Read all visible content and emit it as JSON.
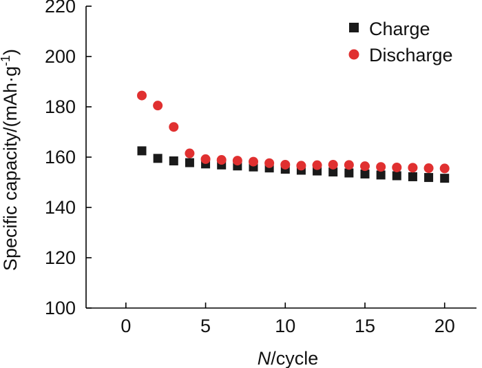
{
  "chart_data": {
    "type": "scatter",
    "title": "",
    "xlabel": {
      "italic": "N",
      "rest": "/cycle"
    },
    "ylabel": {
      "main": "Specific capacity/(mAh·g",
      "sup": "-1",
      "end": ")"
    },
    "xlim": [
      -2.5,
      22
    ],
    "ylim": [
      100,
      220
    ],
    "xticks": [
      0,
      5,
      10,
      15,
      20
    ],
    "yticks": [
      100,
      120,
      140,
      160,
      180,
      200,
      220
    ],
    "legend_position": "top-right",
    "series": [
      {
        "name": "Charge",
        "marker": "square",
        "color": "#1a1a1a",
        "x": [
          1,
          2,
          3,
          4,
          5,
          6,
          7,
          8,
          9,
          10,
          11,
          12,
          13,
          14,
          15,
          16,
          17,
          18,
          19,
          20
        ],
        "values": [
          162.5,
          159.5,
          158.5,
          157.8,
          157.3,
          156.9,
          156.5,
          156.1,
          155.7,
          155.2,
          154.8,
          154.5,
          154.1,
          153.7,
          153.3,
          152.9,
          152.6,
          152.2,
          151.9,
          151.6
        ]
      },
      {
        "name": "Discharge",
        "marker": "circle",
        "color": "#e03030",
        "x": [
          1,
          2,
          3,
          4,
          5,
          6,
          7,
          8,
          9,
          10,
          11,
          12,
          13,
          14,
          15,
          16,
          17,
          18,
          19,
          20
        ],
        "values": [
          184.5,
          180.5,
          172,
          161.5,
          159.2,
          158.9,
          158.6,
          158.2,
          157.6,
          157.0,
          156.6,
          156.8,
          157.0,
          156.9,
          156.4,
          156.1,
          155.9,
          155.8,
          155.6,
          155.5
        ]
      }
    ]
  }
}
